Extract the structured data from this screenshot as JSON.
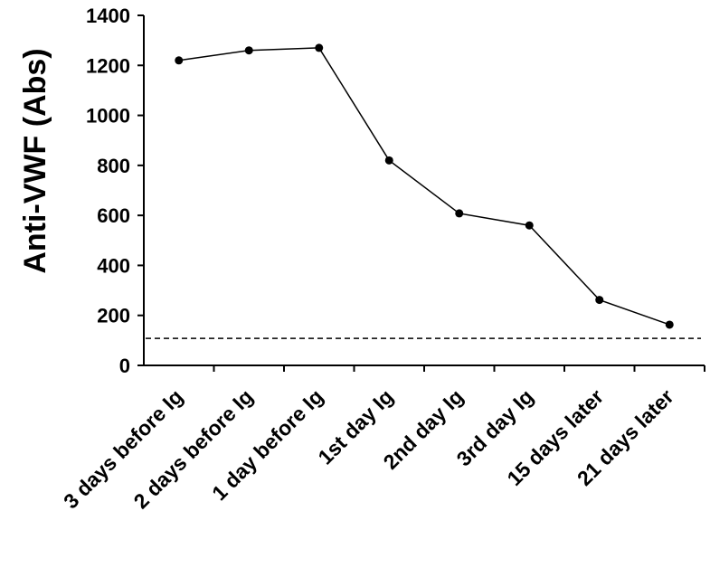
{
  "chart_data": {
    "type": "line",
    "categories": [
      "3 days before Ig",
      "2 days before Ig",
      "1 day before Ig",
      "1st day Ig",
      "2nd day Ig",
      "3rd day Ig",
      "15 days later",
      "21 days later"
    ],
    "series": [
      {
        "values": [
          1220,
          1260,
          1270,
          820,
          608,
          560,
          262,
          163
        ]
      }
    ],
    "reference_line": {
      "value": 108,
      "style": "dashed"
    },
    "title": "",
    "xlabel": "",
    "ylabel": "Anti-VWF (Abs)",
    "ylim": [
      0,
      1400
    ],
    "yticks": [
      0,
      200,
      400,
      600,
      800,
      1000,
      1200,
      1400
    ],
    "grid": false,
    "legend": "none"
  }
}
